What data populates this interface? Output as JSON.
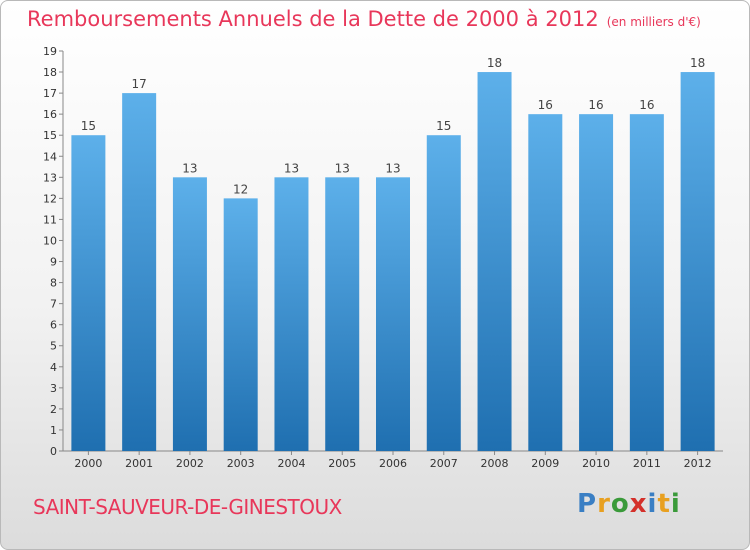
{
  "title": "Remboursements Annuels de la Dette de 2000 à 2012",
  "unit_note": "(en milliers d'€)",
  "commune": "SAINT-SAUVEUR-DE-GINESTOUX",
  "logo": {
    "letters": [
      "P",
      "r",
      "o",
      "x",
      "i",
      "t",
      "i"
    ],
    "colors": [
      "#3a7fc4",
      "#e8a020",
      "#3a9a3a",
      "#d4302a",
      "#3a7fc4",
      "#e8a020",
      "#3a9a3a"
    ]
  },
  "colors": {
    "bar_top": "#5db0ea",
    "bar_bottom": "#1f6fb0",
    "axis": "#888888",
    "grid": "#e6e6e6",
    "accent": "#e8375a"
  },
  "chart_data": {
    "type": "bar",
    "title": "Remboursements Annuels de la Dette de 2000 à 2012",
    "xlabel": "",
    "ylabel": "",
    "categories": [
      "2000",
      "2001",
      "2002",
      "2003",
      "2004",
      "2005",
      "2006",
      "2007",
      "2008",
      "2009",
      "2010",
      "2011",
      "2012"
    ],
    "values": [
      15,
      17,
      13,
      12,
      13,
      13,
      13,
      15,
      18,
      16,
      16,
      16,
      18
    ],
    "ylim": [
      0,
      19
    ],
    "yticks": [
      0,
      1,
      2,
      3,
      4,
      5,
      6,
      7,
      8,
      9,
      10,
      11,
      12,
      13,
      14,
      15,
      16,
      17,
      18,
      19
    ],
    "grid": false,
    "legend": "none"
  }
}
